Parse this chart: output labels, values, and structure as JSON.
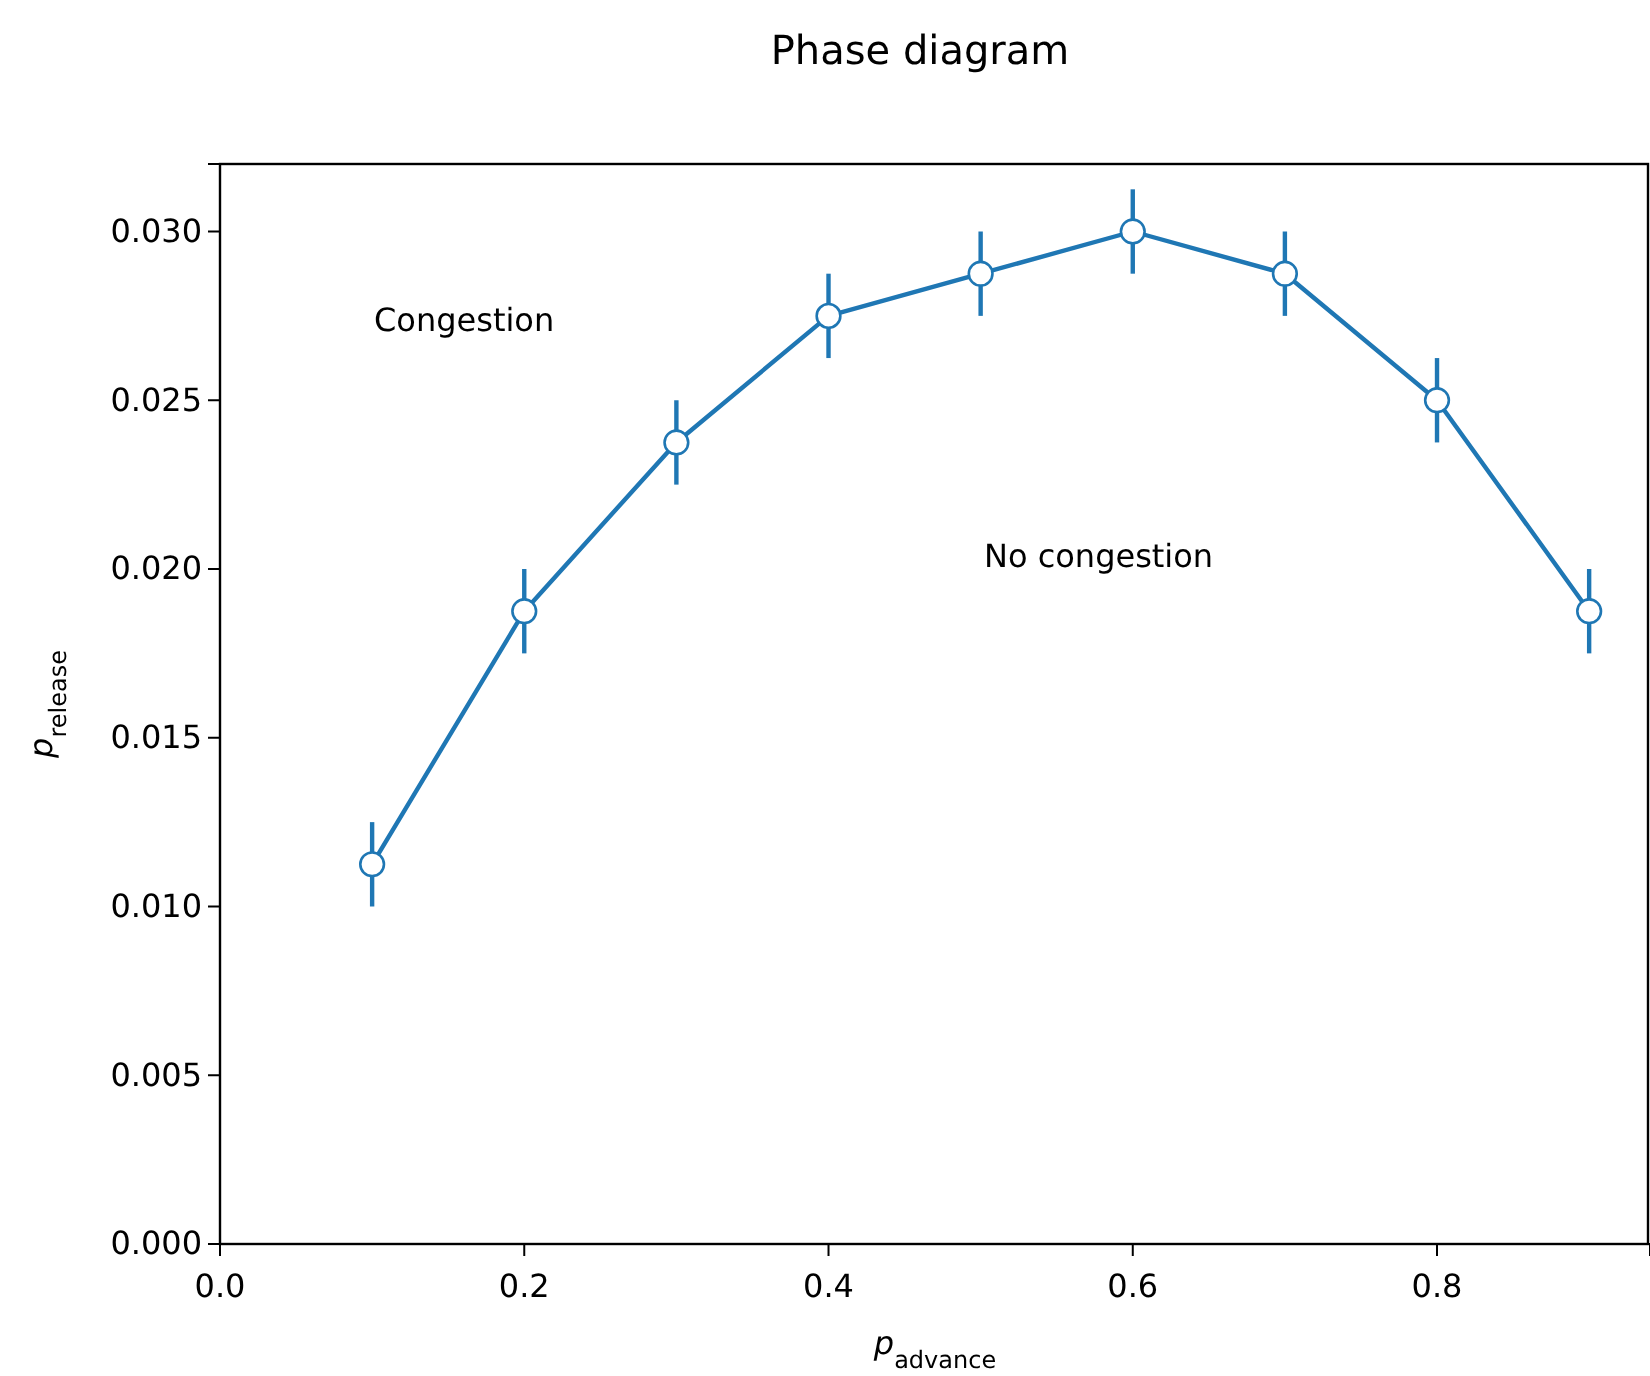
{
  "chart_data": {
    "type": "line",
    "title": "Phase diagram",
    "xlabel": "p$_{advance}$",
    "ylabel": "p$_{release}$",
    "x": [
      0.1,
      0.2,
      0.3,
      0.4,
      0.5,
      0.6,
      0.7,
      0.8,
      0.9
    ],
    "series": [
      {
        "color": "#1f77b4",
        "values": [
          0.01125,
          0.01875,
          0.02375,
          0.0275,
          0.02875,
          0.03,
          0.02875,
          0.025,
          0.01875
        ],
        "errors": [
          0.00125,
          0.00125,
          0.00125,
          0.00125,
          0.00125,
          0.00125,
          0.00125,
          0.00125,
          0.00125
        ]
      }
    ],
    "xlim": [
      0,
      0.94
    ],
    "xticks": [
      {
        "value": 0,
        "label": "0.0"
      },
      {
        "value": 0.2,
        "label": "0.2"
      },
      {
        "value": 0.4,
        "label": "0.4"
      },
      {
        "value": 0.6,
        "label": "0.6"
      },
      {
        "value": 0.8,
        "label": "0.8"
      }
    ],
    "ylim": [
      0,
      0.032
    ],
    "yticks": [
      {
        "value": 0,
        "label": "0.000"
      },
      {
        "value": 0.005,
        "label": "0.005"
      },
      {
        "value": 0.01,
        "label": "0.010"
      },
      {
        "value": 0.015,
        "label": "0.015"
      },
      {
        "value": 0.02,
        "label": "0.020"
      },
      {
        "value": 0.025,
        "label": "0.025"
      },
      {
        "value": 0.03,
        "label": "0.030"
      }
    ],
    "annotations": [
      "Congestion",
      "No congestion"
    ],
    "marker": "circle",
    "line_style": "solid",
    "grid": false
  }
}
